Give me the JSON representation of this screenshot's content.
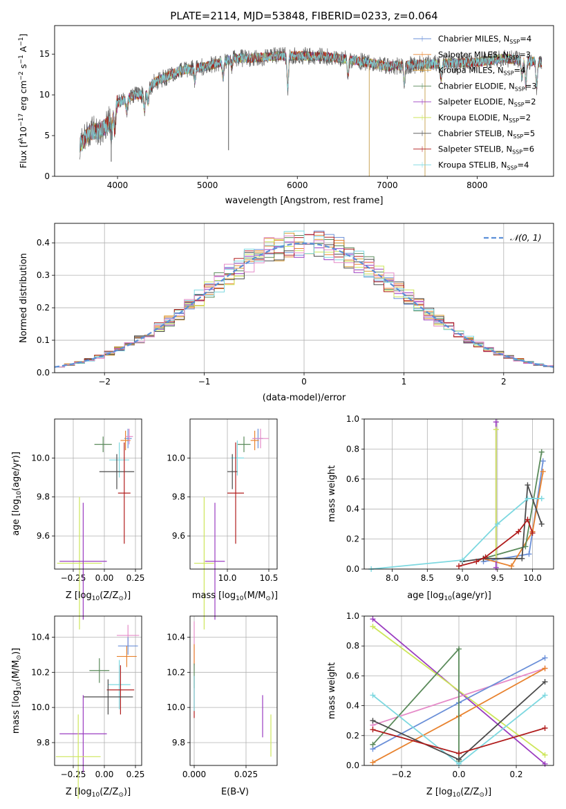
{
  "colors": {
    "Chabrier MILES": "#6a8fd8",
    "Salpeter MILES": "#e8822e",
    "Kroupa MILES": "#d99a2b",
    "Chabrier ELODIE": "#5a8a5a",
    "Salpeter ELODIE": "#9a3bc0",
    "Kroupa ELODIE": "#cde65a",
    "Chabrier STELIB": "#4a4a4a",
    "Salpeter STELIB": "#b01c1c",
    "Kroupa STELIB": "#7dd8e0",
    "pink": "#e58ac8",
    "gauss": "#5b8fd8"
  },
  "chart_data": [
    {
      "id": "spectrum",
      "type": "line",
      "title": "PLATE=2114, MJD=53848, FIBERID=0233, z=0.064",
      "xlabel": "wavelength [Angstrom, rest frame]",
      "ylabel": "Flux [f$_\\lambda$10$^{-17}$ erg cm$^{-2}$ s$^{-1}$ A$^{-1}$]",
      "ylabel_parts": [
        "Flux [f",
        "λ",
        "10",
        "−17",
        " erg cm",
        "−2",
        " s",
        "−1",
        " A",
        "−1",
        "]"
      ],
      "xlim": [
        3300,
        8850
      ],
      "ylim": [
        0,
        18.5
      ],
      "xticks": [
        4000,
        5000,
        6000,
        7000,
        8000
      ],
      "yticks": [
        0,
        5,
        10,
        15
      ],
      "legend_position": "upper-right",
      "grid": false,
      "series": [
        {
          "name": "Chabrier MILES, N_SSP=4",
          "label_main": "Chabrier MILES, N",
          "label_sub": "SSP",
          "label_tail": "=4",
          "color_key": "Chabrier MILES"
        },
        {
          "name": "Salpeter MILES, N_SSP=3",
          "label_main": "Salpeter MILES, N",
          "label_sub": "SSP",
          "label_tail": "=3",
          "color_key": "Salpeter MILES"
        },
        {
          "name": "Kroupa MILES, N_SSP=4",
          "label_main": "Kroupa MILES, N",
          "label_sub": "SSP",
          "label_tail": "=4",
          "color_key": "Kroupa MILES"
        },
        {
          "name": "Chabrier ELODIE, N_SSP=3",
          "label_main": "Chabrier ELODIE, N",
          "label_sub": "SSP",
          "label_tail": "=3",
          "color_key": "Chabrier ELODIE"
        },
        {
          "name": "Salpeter ELODIE, N_SSP=2",
          "label_main": "Salpeter ELODIE, N",
          "label_sub": "SSP",
          "label_tail": "=2",
          "color_key": "Salpeter ELODIE"
        },
        {
          "name": "Kroupa ELODIE, N_SSP=2",
          "label_main": "Kroupa ELODIE, N",
          "label_sub": "SSP",
          "label_tail": "=2",
          "color_key": "Kroupa ELODIE"
        },
        {
          "name": "Chabrier STELIB, N_SSP=5",
          "label_main": "Chabrier STELIB, N",
          "label_sub": "SSP",
          "label_tail": "=5",
          "color_key": "Chabrier STELIB"
        },
        {
          "name": "Salpeter STELIB, N_SSP=6",
          "label_main": "Salpeter STELIB, N",
          "label_sub": "SSP",
          "label_tail": "=6",
          "color_key": "Salpeter STELIB"
        },
        {
          "name": "Kroupa STELIB, N_SSP=4",
          "label_main": "Kroupa STELIB, N",
          "label_sub": "SSP",
          "label_tail": "=4",
          "color_key": "Kroupa STELIB"
        }
      ],
      "continuum": [
        [
          3600,
          4.0
        ],
        [
          3700,
          5.5
        ],
        [
          3800,
          5.5
        ],
        [
          3900,
          6.5
        ],
        [
          4000,
          9.0
        ],
        [
          4100,
          9.5
        ],
        [
          4200,
          10.0
        ],
        [
          4300,
          10.0
        ],
        [
          4400,
          11.5
        ],
        [
          4500,
          12.0
        ],
        [
          4700,
          13.0
        ],
        [
          5000,
          13.5
        ],
        [
          5300,
          14.5
        ],
        [
          5500,
          14.5
        ],
        [
          5800,
          14.8
        ],
        [
          6000,
          14.8
        ],
        [
          6300,
          14.7
        ],
        [
          6600,
          14.3
        ],
        [
          7000,
          13.5
        ],
        [
          7500,
          13.8
        ],
        [
          8000,
          14.0
        ],
        [
          8300,
          14.5
        ],
        [
          8500,
          14.2
        ],
        [
          8700,
          14.0
        ]
      ],
      "absorption_lines": [
        [
          3934,
          2.0
        ],
        [
          3969,
          2.5
        ],
        [
          4102,
          1.5
        ],
        [
          4300,
          2.0
        ],
        [
          4341,
          1.5
        ],
        [
          4861,
          1.5
        ],
        [
          5175,
          2.0
        ],
        [
          5270,
          1.0
        ],
        [
          5893,
          4.0
        ],
        [
          6563,
          2.0
        ],
        [
          7190,
          2.0
        ],
        [
          7600,
          2.0
        ],
        [
          8498,
          2.0
        ],
        [
          8542,
          3.0
        ],
        [
          8662,
          3.0
        ]
      ],
      "dropouts": [
        {
          "x": 6800,
          "to": 0
        },
        {
          "x": 7420,
          "to": 0
        },
        {
          "x": 5235,
          "to": 3.2
        },
        {
          "x": 3930,
          "to": 1.8
        }
      ]
    },
    {
      "id": "residuals",
      "type": "histogram",
      "xlabel": "(data-model)/error",
      "ylabel": "Normed distribution",
      "xlim": [
        -2.5,
        2.5
      ],
      "ylim": [
        0,
        0.46
      ],
      "xticks": [
        -2,
        -1,
        0,
        1,
        2
      ],
      "yticks": [
        0.0,
        0.1,
        0.2,
        0.3,
        0.4
      ],
      "grid": true,
      "bin_width": 0.1,
      "legend": {
        "position": "upper-right",
        "label": "𝒩(0, 1)"
      },
      "gaussian": {
        "mean": 0,
        "sigma": 1
      }
    },
    {
      "id": "age_vs_Z",
      "type": "errorbar",
      "xlabel_parts": [
        "Z [log",
        "10",
        "(Z/Z",
        "⊙",
        ")]"
      ],
      "ylabel_parts": [
        "age  [log",
        "10",
        "(age/yr)]"
      ],
      "xlim": [
        -0.4,
        0.3
      ],
      "ylim": [
        9.43,
        10.2
      ],
      "xticks": [
        -0.25,
        0.0,
        0.25
      ],
      "xtick_labels": [
        "−0.25",
        "0.00",
        "0.25"
      ],
      "yticks": [
        9.6,
        9.8,
        10.0
      ],
      "grid": true,
      "points": [
        {
          "key": "Chabrier MILES",
          "x": 0.19,
          "xerr": 0.03,
          "y": 10.1,
          "yerr": 0.05
        },
        {
          "key": "Salpeter MILES",
          "x": 0.17,
          "xerr": 0.04,
          "y": 10.09,
          "yerr": 0.05
        },
        {
          "key": "pink",
          "x": 0.2,
          "xerr": 0.03,
          "y": 10.11,
          "yerr": 0.04
        },
        {
          "key": "Chabrier ELODIE",
          "x": -0.01,
          "xerr": 0.07,
          "y": 10.07,
          "yerr": 0.04
        },
        {
          "key": "Kroupa STELIB",
          "x": 0.12,
          "xerr": 0.08,
          "y": 9.99,
          "yerr": 0.09
        },
        {
          "key": "Chabrier STELIB",
          "x": 0.1,
          "xerr": 0.14,
          "y": 9.93,
          "yerr": 0.09
        },
        {
          "key": "Salpeter STELIB",
          "x": 0.16,
          "xerr": 0.05,
          "y": 9.82,
          "yerr": 0.26
        },
        {
          "key": "Kroupa ELODIE",
          "x": -0.2,
          "xerr": 0.18,
          "y": 9.46,
          "yerr": 0.34
        },
        {
          "key": "Salpeter ELODIE",
          "x": -0.17,
          "xerr": 0.19,
          "y": 9.47,
          "yerr": 0.3
        }
      ]
    },
    {
      "id": "age_vs_mass",
      "type": "errorbar",
      "xlabel_parts": [
        "mass [log",
        "10",
        "(M/M",
        "⊙",
        ")]"
      ],
      "ylabel": "",
      "xlim": [
        9.55,
        10.6
      ],
      "ylim": [
        9.43,
        10.2
      ],
      "xticks": [
        10.0,
        10.5
      ],
      "yticks": [
        9.6,
        9.8,
        10.0
      ],
      "grid": true,
      "points": [
        {
          "key": "Chabrier MILES",
          "x": 10.37,
          "xerr": 0.06,
          "y": 10.1,
          "yerr": 0.05
        },
        {
          "key": "Salpeter MILES",
          "x": 10.33,
          "xerr": 0.05,
          "y": 10.09,
          "yerr": 0.05
        },
        {
          "key": "pink",
          "x": 10.4,
          "xerr": 0.1,
          "y": 10.1,
          "yerr": 0.05
        },
        {
          "key": "Chabrier ELODIE",
          "x": 10.2,
          "xerr": 0.08,
          "y": 10.07,
          "yerr": 0.04
        },
        {
          "key": "Kroupa STELIB",
          "x": 10.12,
          "xerr": 0.08,
          "y": 10.0,
          "yerr": 0.09
        },
        {
          "key": "Chabrier STELIB",
          "x": 10.06,
          "xerr": 0.06,
          "y": 9.93,
          "yerr": 0.09
        },
        {
          "key": "Salpeter STELIB",
          "x": 10.1,
          "xerr": 0.1,
          "y": 9.82,
          "yerr": 0.26
        },
        {
          "key": "Kroupa ELODIE",
          "x": 9.72,
          "xerr": 0.12,
          "y": 9.46,
          "yerr": 0.34
        },
        {
          "key": "Salpeter ELODIE",
          "x": 9.85,
          "xerr": 0.12,
          "y": 9.47,
          "yerr": 0.3
        }
      ]
    },
    {
      "id": "weight_vs_age",
      "type": "line",
      "xlabel_parts": [
        "age  [log",
        "10",
        "(age/yr)]"
      ],
      "ylabel": "mass weight",
      "xlim": [
        7.6,
        10.3
      ],
      "ylim": [
        0,
        1.0
      ],
      "xticks": [
        8.0,
        8.5,
        9.0,
        9.5,
        10.0
      ],
      "yticks": [
        0.0,
        0.2,
        0.4,
        0.6,
        0.8,
        1.0
      ],
      "grid": true,
      "series": [
        {
          "key": "Chabrier MILES",
          "points": [
            [
              9.3,
              0.05
            ],
            [
              9.95,
              0.1
            ],
            [
              10.0,
              0.25
            ],
            [
              10.15,
              0.72
            ]
          ]
        },
        {
          "key": "Salpeter MILES",
          "points": [
            [
              9.3,
              0.07
            ],
            [
              9.7,
              0.02
            ],
            [
              10.0,
              0.25
            ],
            [
              10.15,
              0.65
            ]
          ]
        },
        {
          "key": "Chabrier ELODIE",
          "points": [
            [
              9.3,
              0.07
            ],
            [
              9.9,
              0.15
            ],
            [
              10.13,
              0.78
            ]
          ]
        },
        {
          "key": "Salpeter ELODIE",
          "points": [
            [
              9.48,
              0.01
            ],
            [
              9.48,
              0.98
            ]
          ]
        },
        {
          "key": "Kroupa ELODIE",
          "points": [
            [
              9.48,
              0.07
            ],
            [
              9.48,
              0.93
            ]
          ]
        },
        {
          "key": "Chabrier STELIB",
          "points": [
            [
              9.0,
              0.05
            ],
            [
              9.3,
              0.07
            ],
            [
              9.85,
              0.07
            ],
            [
              9.93,
              0.56
            ],
            [
              10.13,
              0.3
            ]
          ]
        },
        {
          "key": "Salpeter STELIB",
          "points": [
            [
              8.95,
              0.02
            ],
            [
              9.2,
              0.05
            ],
            [
              9.33,
              0.08
            ],
            [
              9.8,
              0.25
            ],
            [
              9.93,
              0.33
            ],
            [
              10.0,
              0.24
            ]
          ]
        },
        {
          "key": "Kroupa STELIB",
          "points": [
            [
              7.7,
              0.0
            ],
            [
              9.0,
              0.06
            ],
            [
              9.5,
              0.3
            ],
            [
              9.93,
              0.47
            ],
            [
              10.13,
              0.47
            ]
          ]
        }
      ]
    },
    {
      "id": "mass_vs_Z",
      "type": "errorbar",
      "xlabel_parts": [
        "Z [log",
        "10",
        "(Z/Z",
        "⊙",
        ")]"
      ],
      "ylabel_parts": [
        "mass [log",
        "10",
        "(M/M",
        "⊙",
        ")]"
      ],
      "xlim": [
        -0.4,
        0.3
      ],
      "ylim": [
        9.67,
        10.52
      ],
      "xticks": [
        -0.25,
        0.0,
        0.25
      ],
      "xtick_labels": [
        "−0.25",
        "0.00",
        "0.25"
      ],
      "yticks": [
        9.8,
        10.0,
        10.2,
        10.4
      ],
      "grid": true,
      "points": [
        {
          "key": "pink",
          "x": 0.19,
          "xerr": 0.09,
          "y": 10.41,
          "yerr": 0.06
        },
        {
          "key": "Chabrier MILES",
          "x": 0.19,
          "xerr": 0.08,
          "y": 10.35,
          "yerr": 0.05
        },
        {
          "key": "Salpeter MILES",
          "x": 0.18,
          "xerr": 0.08,
          "y": 10.29,
          "yerr": 0.06
        },
        {
          "key": "Chabrier ELODIE",
          "x": -0.04,
          "xerr": 0.08,
          "y": 10.21,
          "yerr": 0.07
        },
        {
          "key": "Kroupa STELIB",
          "x": 0.12,
          "xerr": 0.09,
          "y": 10.13,
          "yerr": 0.14
        },
        {
          "key": "Salpeter STELIB",
          "x": 0.13,
          "xerr": 0.11,
          "y": 10.1,
          "yerr": 0.14
        },
        {
          "key": "Chabrier STELIB",
          "x": 0.03,
          "xerr": 0.2,
          "y": 10.06,
          "yerr": 0.1
        },
        {
          "key": "Salpeter ELODIE",
          "x": -0.17,
          "xerr": 0.19,
          "y": 9.85,
          "yerr": 0.22
        },
        {
          "key": "Kroupa ELODIE",
          "x": -0.21,
          "xerr": 0.18,
          "y": 9.72,
          "yerr": 0.24
        }
      ]
    },
    {
      "id": "mass_vs_ebv",
      "type": "errorbar",
      "xlabel": "E(B-V)",
      "ylabel": "",
      "xlim": [
        -0.002,
        0.04
      ],
      "ylim": [
        9.67,
        10.52
      ],
      "xticks": [
        0.0,
        0.025
      ],
      "xtick_labels": [
        "0.000",
        "0.025"
      ],
      "yticks": [
        9.8,
        10.0,
        10.2,
        10.4
      ],
      "grid": true,
      "points": [
        {
          "key": "pink",
          "x": 0.0,
          "xerr": 0,
          "y": 10.35,
          "yerr": 0.14
        },
        {
          "key": "Salpeter MILES",
          "x": 0.0,
          "xerr": 0,
          "y": 10.3,
          "yerr": 0.06
        },
        {
          "key": "Chabrier ELODIE",
          "x": 0.0,
          "xerr": 0,
          "y": 10.18,
          "yerr": 0.07
        },
        {
          "key": "Salpeter STELIB",
          "x": 0.0,
          "xerr": 0,
          "y": 10.06,
          "yerr": 0.12
        },
        {
          "key": "Kroupa STELIB",
          "x": 0.0,
          "xerr": 0,
          "y": 10.08,
          "yerr": 0.1
        },
        {
          "key": "Salpeter ELODIE",
          "x": 0.033,
          "xerr": 0,
          "y": 9.95,
          "yerr": 0.12
        },
        {
          "key": "Kroupa ELODIE",
          "x": 0.037,
          "xerr": 0,
          "y": 9.84,
          "yerr": 0.12
        }
      ]
    },
    {
      "id": "weight_vs_Z",
      "type": "line",
      "xlabel_parts": [
        "Z [log",
        "10",
        "(Z/Z",
        "⊙",
        ")]"
      ],
      "ylabel": "mass weight",
      "xlim": [
        -0.33,
        0.33
      ],
      "ylim": [
        0,
        1.0
      ],
      "xticks": [
        -0.2,
        0.0,
        0.2
      ],
      "xtick_labels": [
        "−0.2",
        "0.0",
        "0.2"
      ],
      "yticks": [
        0.0,
        0.2,
        0.4,
        0.6,
        0.8,
        1.0
      ],
      "grid": true,
      "series": [
        {
          "key": "Salpeter ELODIE",
          "points": [
            [
              -0.3,
              0.98
            ],
            [
              0.3,
              0.01
            ]
          ]
        },
        {
          "key": "Kroupa ELODIE",
          "points": [
            [
              -0.3,
              0.93
            ],
            [
              0.3,
              0.07
            ]
          ]
        },
        {
          "key": "pink",
          "points": [
            [
              -0.3,
              0.27
            ],
            [
              0.3,
              0.65
            ]
          ]
        },
        {
          "key": "Chabrier MILES",
          "points": [
            [
              -0.3,
              0.11
            ],
            [
              0.0,
              0.42
            ],
            [
              0.3,
              0.72
            ]
          ]
        },
        {
          "key": "Salpeter MILES",
          "points": [
            [
              -0.3,
              0.02
            ],
            [
              0.0,
              0.33
            ],
            [
              0.3,
              0.65
            ]
          ]
        },
        {
          "key": "Chabrier ELODIE",
          "points": [
            [
              -0.3,
              0.14
            ],
            [
              0.0,
              0.78
            ],
            [
              0.0,
              0.03
            ]
          ]
        },
        {
          "key": "Kroupa STELIB",
          "points": [
            [
              -0.3,
              0.47
            ],
            [
              0.0,
              0.01
            ],
            [
              0.3,
              0.47
            ]
          ]
        },
        {
          "key": "Chabrier STELIB",
          "points": [
            [
              -0.3,
              0.3
            ],
            [
              0.0,
              0.04
            ],
            [
              0.3,
              0.56
            ]
          ]
        },
        {
          "key": "Salpeter STELIB",
          "points": [
            [
              -0.3,
              0.24
            ],
            [
              0.0,
              0.08
            ],
            [
              0.3,
              0.25
            ]
          ]
        }
      ]
    }
  ]
}
